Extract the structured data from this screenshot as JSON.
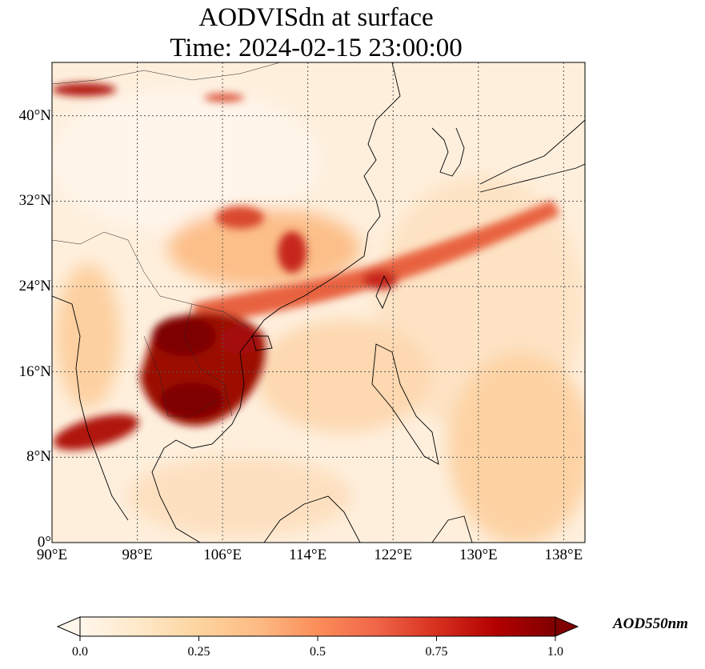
{
  "title": {
    "line1": "AODVISdn at surface",
    "line2": "Time: 2024-02-15 23:00:00"
  },
  "map": {
    "projection": "PlateCarree",
    "lon_range": [
      90,
      140
    ],
    "lat_range": [
      0,
      45
    ],
    "gridlines": true,
    "colormap": "OrRd",
    "lat_ticks": [
      {
        "value": 0,
        "label": "0°"
      },
      {
        "value": 8,
        "label": "8°N"
      },
      {
        "value": 16,
        "label": "16°N"
      },
      {
        "value": 24,
        "label": "24°N"
      },
      {
        "value": 32,
        "label": "32°N"
      },
      {
        "value": 40,
        "label": "40°N"
      }
    ],
    "lon_ticks": [
      {
        "value": 90,
        "label": "90°E"
      },
      {
        "value": 98,
        "label": "98°E"
      },
      {
        "value": 106,
        "label": "106°E"
      },
      {
        "value": 114,
        "label": "114°E"
      },
      {
        "value": 122,
        "label": "122°E"
      },
      {
        "value": 130,
        "label": "130°E"
      },
      {
        "value": 138,
        "label": "138°E"
      }
    ]
  },
  "colorbar": {
    "label": "AOD550nm",
    "vmin": 0.0,
    "vmax": 1.0,
    "extend": "both",
    "ticks": [
      {
        "value": 0.0,
        "label": "0.0"
      },
      {
        "value": 0.25,
        "label": "0.25"
      },
      {
        "value": 0.5,
        "label": "0.5"
      },
      {
        "value": 0.75,
        "label": "0.75"
      },
      {
        "value": 1.0,
        "label": "1.0"
      }
    ],
    "colors": [
      "#fff7ec",
      "#fee8c8",
      "#fdd49e",
      "#fdbb84",
      "#fc8d59",
      "#ef6548",
      "#d7301f",
      "#b30000",
      "#7f0000"
    ]
  }
}
